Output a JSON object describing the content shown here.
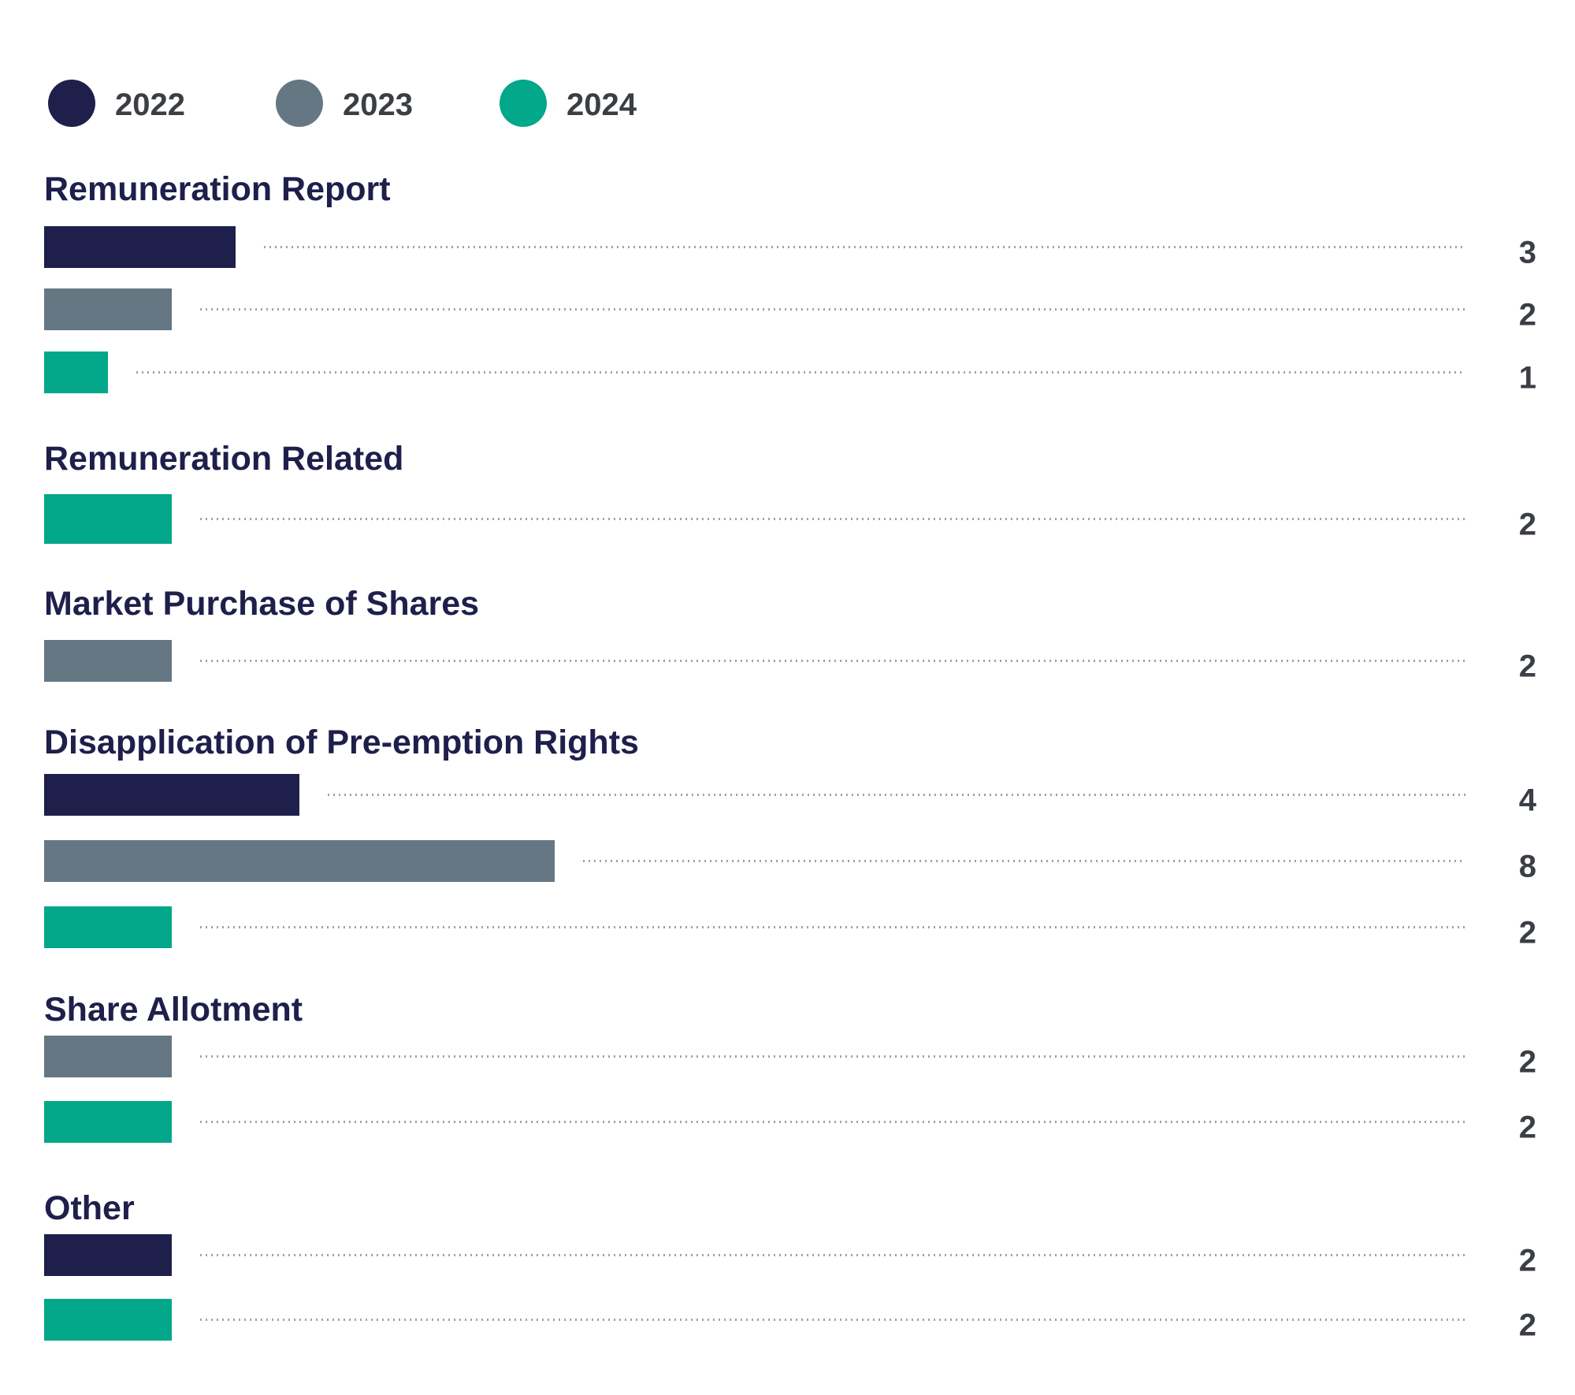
{
  "colors": {
    "2022": "#1e1f4b",
    "2023": "#667784",
    "2024": "#03a78a"
  },
  "legend": [
    {
      "label": "2022",
      "color": "#1e1f4b"
    },
    {
      "label": "2023",
      "color": "#667784"
    },
    {
      "label": "2024",
      "color": "#03a78a"
    }
  ],
  "chart_data": {
    "type": "bar",
    "orientation": "horizontal",
    "legend_position": "top-left",
    "grid": false,
    "groups": [
      {
        "title": "Remuneration Report",
        "bars": [
          {
            "series": "2022",
            "value": 3
          },
          {
            "series": "2023",
            "value": 2
          },
          {
            "series": "2024",
            "value": 1
          }
        ]
      },
      {
        "title": "Remuneration Related",
        "bars": [
          {
            "series": "2024",
            "value": 2
          }
        ]
      },
      {
        "title": "Market Purchase of Shares",
        "bars": [
          {
            "series": "2023",
            "value": 2
          }
        ]
      },
      {
        "title": "Disapplication of Pre-emption Rights",
        "bars": [
          {
            "series": "2022",
            "value": 4
          },
          {
            "series": "2023",
            "value": 8
          },
          {
            "series": "2024",
            "value": 2
          }
        ]
      },
      {
        "title": "Share Allotment",
        "bars": [
          {
            "series": "2023",
            "value": 2
          },
          {
            "series": "2024",
            "value": 2
          }
        ]
      },
      {
        "title": "Other",
        "bars": [
          {
            "series": "2022",
            "value": 2
          },
          {
            "series": "2024",
            "value": 2
          }
        ]
      }
    ]
  }
}
